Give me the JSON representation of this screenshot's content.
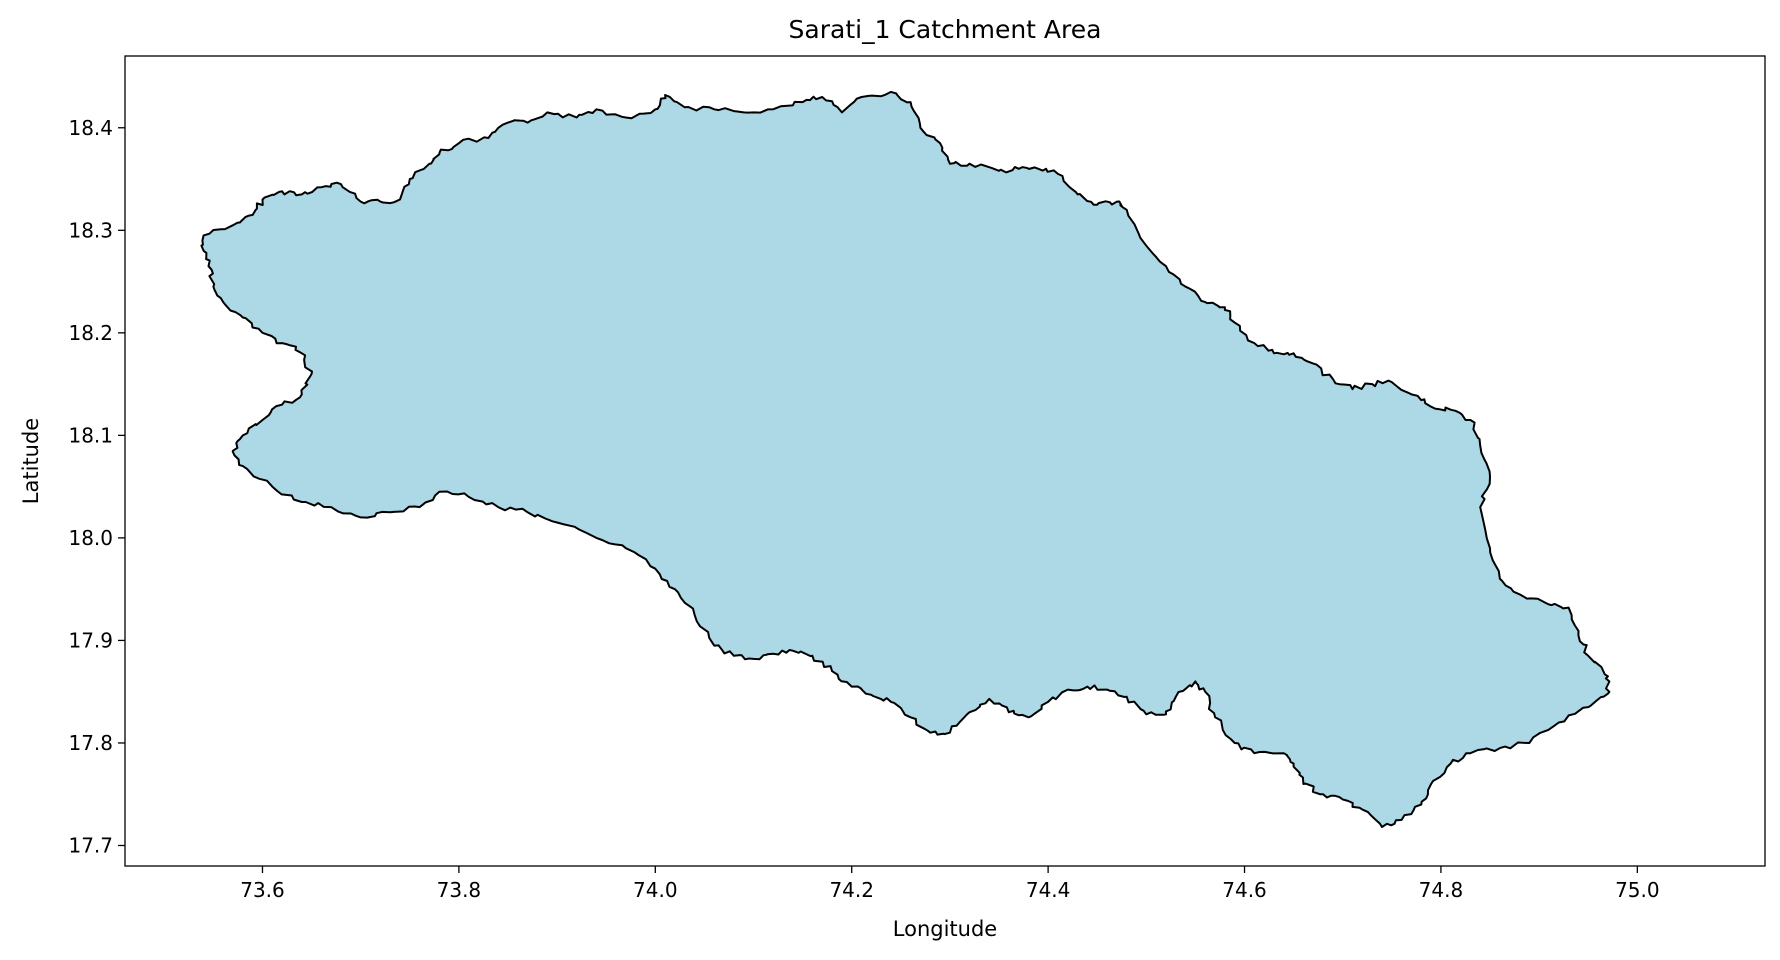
{
  "chart_data": {
    "type": "map",
    "title": "Sarati_1 Catchment Area",
    "xlabel": "Longitude",
    "ylabel": "Latitude",
    "xlim": [
      73.46,
      75.13
    ],
    "ylim": [
      17.68,
      18.47
    ],
    "xticks": [
      "73.6",
      "73.8",
      "74.0",
      "74.2",
      "74.4",
      "74.6",
      "74.8",
      "75.0"
    ],
    "yticks": [
      "17.7",
      "17.8",
      "17.9",
      "18.0",
      "18.1",
      "18.2",
      "18.3",
      "18.4"
    ],
    "xtick_values": [
      73.6,
      73.8,
      74.0,
      74.2,
      74.4,
      74.6,
      74.8,
      75.0
    ],
    "ytick_values": [
      17.7,
      17.8,
      17.9,
      18.0,
      18.1,
      18.2,
      18.3,
      18.4
    ],
    "grid": false,
    "fill_color": "#add8e6",
    "edge_color": "#000000",
    "boundary": [
      [
        73.54,
        18.295
      ],
      [
        73.57,
        18.305
      ],
      [
        73.59,
        18.315
      ],
      [
        73.6,
        18.33
      ],
      [
        73.62,
        18.338
      ],
      [
        73.64,
        18.335
      ],
      [
        73.66,
        18.342
      ],
      [
        73.68,
        18.345
      ],
      [
        73.7,
        18.328
      ],
      [
        73.72,
        18.328
      ],
      [
        73.74,
        18.33
      ],
      [
        73.75,
        18.35
      ],
      [
        73.77,
        18.365
      ],
      [
        73.78,
        18.375
      ],
      [
        73.8,
        18.385
      ],
      [
        73.83,
        18.39
      ],
      [
        73.85,
        18.405
      ],
      [
        73.87,
        18.405
      ],
      [
        73.89,
        18.415
      ],
      [
        73.92,
        18.41
      ],
      [
        73.94,
        18.418
      ],
      [
        73.97,
        18.41
      ],
      [
        74.0,
        18.418
      ],
      [
        74.01,
        18.432
      ],
      [
        74.03,
        18.42
      ],
      [
        74.06,
        18.418
      ],
      [
        74.09,
        18.415
      ],
      [
        74.12,
        18.418
      ],
      [
        74.15,
        18.425
      ],
      [
        74.17,
        18.43
      ],
      [
        74.19,
        18.415
      ],
      [
        74.21,
        18.43
      ],
      [
        74.24,
        18.435
      ],
      [
        74.26,
        18.425
      ],
      [
        74.27,
        18.4
      ],
      [
        74.29,
        18.385
      ],
      [
        74.3,
        18.365
      ],
      [
        74.32,
        18.365
      ],
      [
        74.35,
        18.358
      ],
      [
        74.37,
        18.36
      ],
      [
        74.39,
        18.36
      ],
      [
        74.41,
        18.355
      ],
      [
        74.43,
        18.335
      ],
      [
        74.45,
        18.325
      ],
      [
        74.47,
        18.328
      ],
      [
        74.48,
        18.32
      ],
      [
        74.5,
        18.285
      ],
      [
        74.52,
        18.265
      ],
      [
        74.54,
        18.245
      ],
      [
        74.56,
        18.23
      ],
      [
        74.58,
        18.225
      ],
      [
        74.59,
        18.21
      ],
      [
        74.61,
        18.19
      ],
      [
        74.63,
        18.18
      ],
      [
        74.65,
        18.18
      ],
      [
        74.67,
        18.17
      ],
      [
        74.69,
        18.155
      ],
      [
        74.71,
        18.145
      ],
      [
        74.73,
        18.15
      ],
      [
        74.75,
        18.152
      ],
      [
        74.77,
        18.14
      ],
      [
        74.79,
        18.128
      ],
      [
        74.81,
        18.125
      ],
      [
        74.83,
        18.115
      ],
      [
        74.84,
        18.09
      ],
      [
        74.85,
        18.06
      ],
      [
        74.84,
        18.03
      ],
      [
        74.85,
        17.99
      ],
      [
        74.86,
        17.96
      ],
      [
        74.88,
        17.945
      ],
      [
        74.91,
        17.935
      ],
      [
        74.93,
        17.932
      ],
      [
        74.94,
        17.905
      ],
      [
        74.95,
        17.885
      ],
      [
        74.97,
        17.865
      ],
      [
        74.97,
        17.848
      ],
      [
        74.95,
        17.835
      ],
      [
        74.92,
        17.82
      ],
      [
        74.89,
        17.8
      ],
      [
        74.86,
        17.795
      ],
      [
        74.83,
        17.79
      ],
      [
        74.81,
        17.78
      ],
      [
        74.79,
        17.76
      ],
      [
        74.78,
        17.74
      ],
      [
        74.76,
        17.725
      ],
      [
        74.74,
        17.718
      ],
      [
        74.72,
        17.735
      ],
      [
        74.7,
        17.745
      ],
      [
        74.68,
        17.75
      ],
      [
        74.66,
        17.76
      ],
      [
        74.65,
        17.78
      ],
      [
        74.64,
        17.79
      ],
      [
        74.61,
        17.79
      ],
      [
        74.59,
        17.8
      ],
      [
        74.57,
        17.825
      ],
      [
        74.56,
        17.85
      ],
      [
        74.55,
        17.86
      ],
      [
        74.53,
        17.845
      ],
      [
        74.52,
        17.828
      ],
      [
        74.5,
        17.828
      ],
      [
        74.48,
        17.845
      ],
      [
        74.46,
        17.852
      ],
      [
        74.44,
        17.855
      ],
      [
        74.42,
        17.852
      ],
      [
        74.4,
        17.84
      ],
      [
        74.38,
        17.825
      ],
      [
        74.36,
        17.83
      ],
      [
        74.34,
        17.843
      ],
      [
        74.32,
        17.83
      ],
      [
        74.3,
        17.81
      ],
      [
        74.28,
        17.81
      ],
      [
        74.26,
        17.825
      ],
      [
        74.24,
        17.84
      ],
      [
        74.22,
        17.847
      ],
      [
        74.2,
        17.855
      ],
      [
        74.18,
        17.87
      ],
      [
        74.16,
        17.885
      ],
      [
        74.14,
        17.89
      ],
      [
        74.12,
        17.887
      ],
      [
        74.1,
        17.882
      ],
      [
        74.08,
        17.885
      ],
      [
        74.06,
        17.895
      ],
      [
        74.04,
        17.925
      ],
      [
        74.02,
        17.95
      ],
      [
        74.0,
        17.97
      ],
      [
        73.97,
        17.99
      ],
      [
        73.94,
        18.0
      ],
      [
        73.9,
        18.015
      ],
      [
        73.87,
        18.025
      ],
      [
        73.84,
        18.03
      ],
      [
        73.81,
        18.04
      ],
      [
        73.78,
        18.045
      ],
      [
        73.76,
        18.03
      ],
      [
        73.73,
        18.025
      ],
      [
        73.7,
        18.02
      ],
      [
        73.67,
        18.03
      ],
      [
        73.64,
        18.035
      ],
      [
        73.61,
        18.05
      ],
      [
        73.58,
        18.07
      ],
      [
        73.57,
        18.085
      ],
      [
        73.58,
        18.1
      ],
      [
        73.6,
        18.115
      ],
      [
        73.62,
        18.13
      ],
      [
        73.64,
        18.14
      ],
      [
        73.65,
        18.16
      ],
      [
        73.64,
        18.18
      ],
      [
        73.62,
        18.19
      ],
      [
        73.6,
        18.2
      ],
      [
        73.58,
        18.215
      ],
      [
        73.56,
        18.23
      ],
      [
        73.55,
        18.245
      ],
      [
        73.545,
        18.265
      ],
      [
        73.54,
        18.28
      ]
    ]
  }
}
